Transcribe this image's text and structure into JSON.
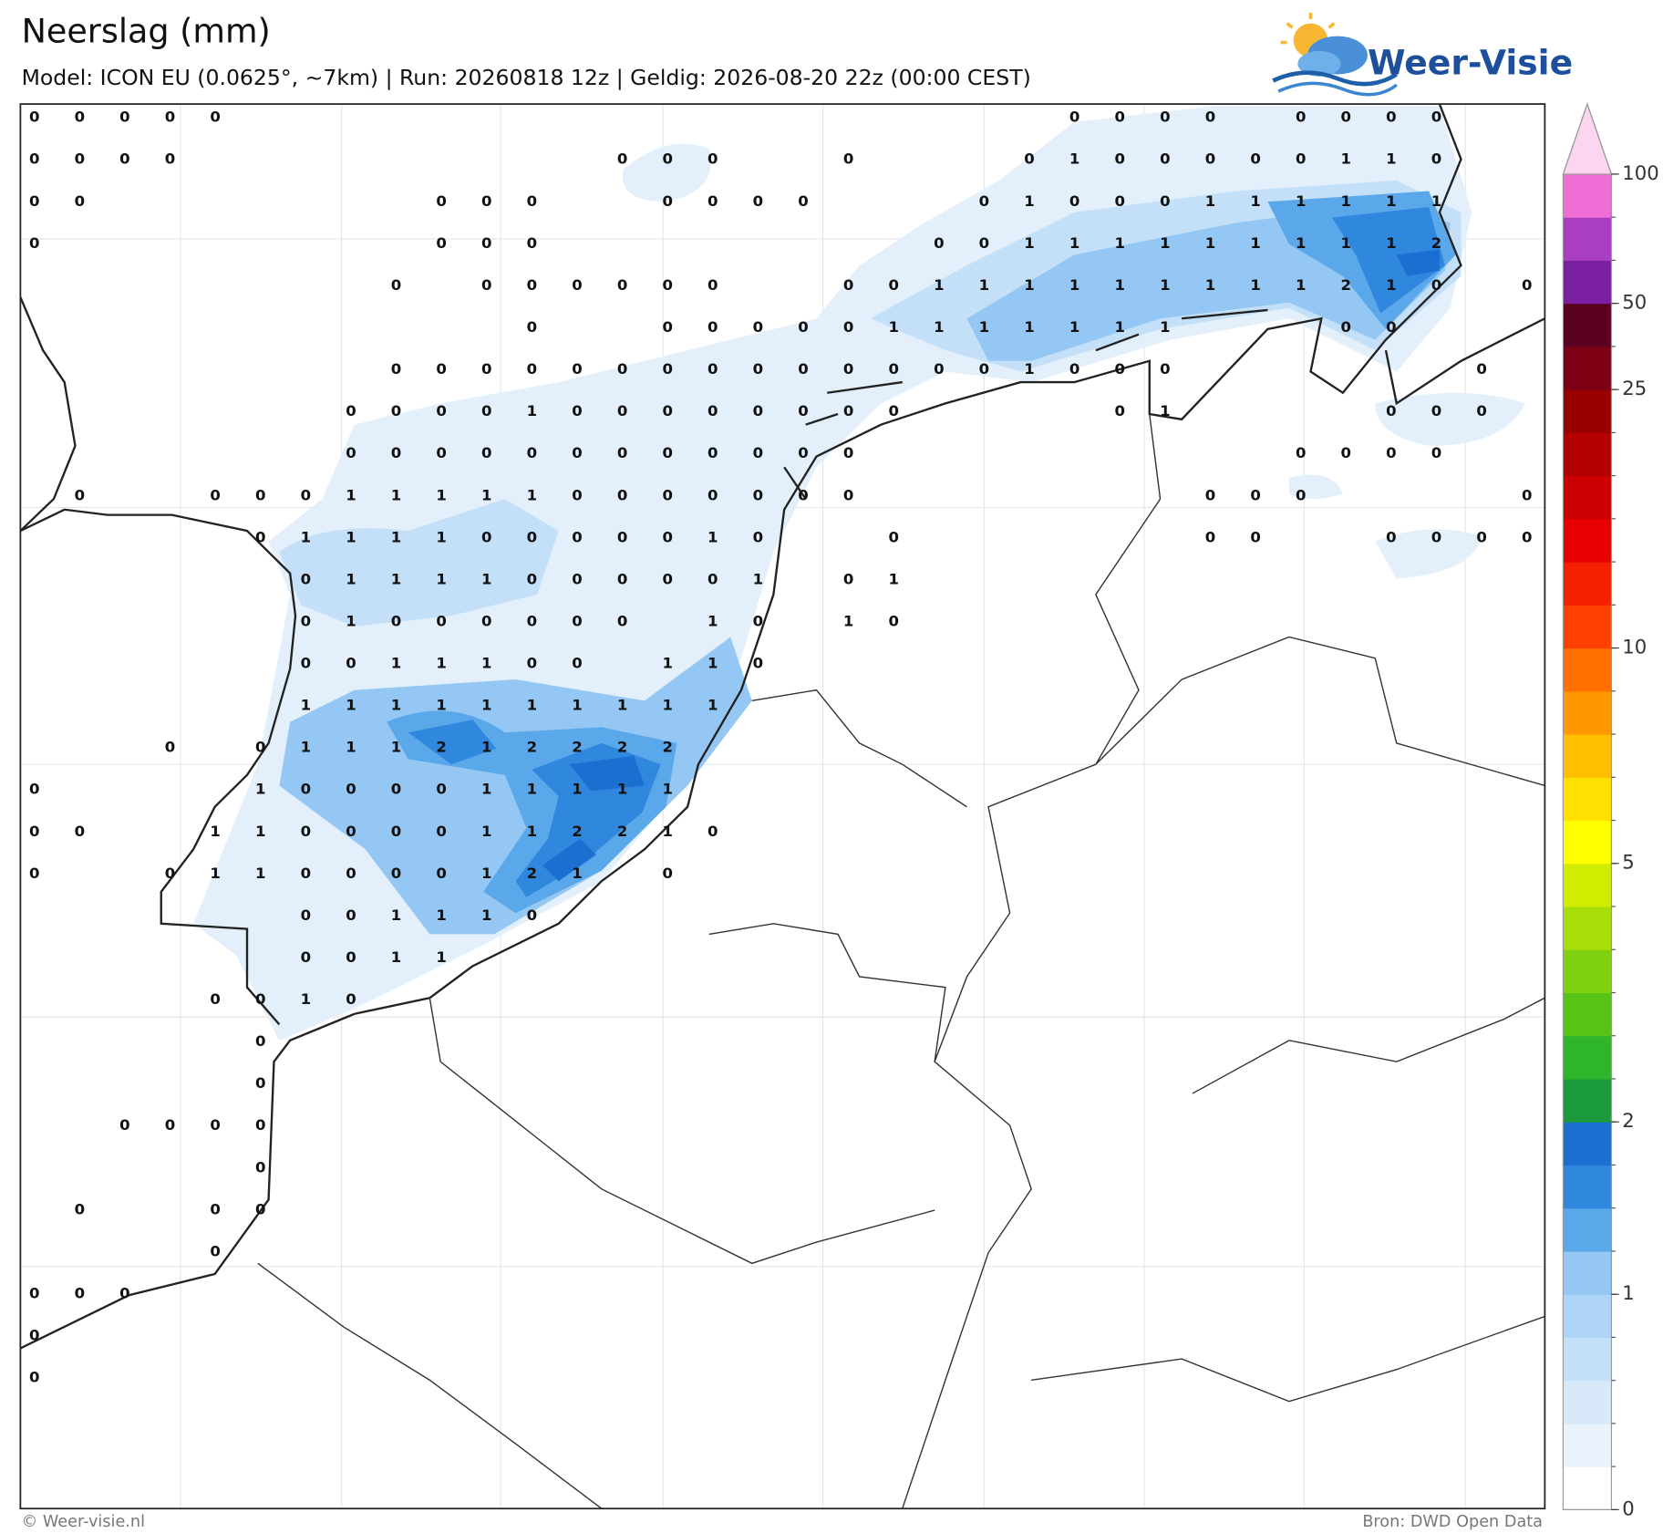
{
  "header": {
    "title": "Neerslag (mm)",
    "subtitle": "Model: ICON EU (0.0625°, ~7km)  |  Run: 20260818 12z  |  Geldig: 2026-08-20 22z (00:00 CEST)",
    "logo": "Weer-Visie"
  },
  "footer": {
    "left": "© Weer-visie.nl",
    "right": "Bron: DWD Open Data"
  },
  "colorbar": {
    "levels": [
      0,
      0.1,
      0.25,
      0.5,
      0.75,
      1,
      1.25,
      1.5,
      1.75,
      2,
      2.5,
      3,
      3.5,
      4,
      4.5,
      5,
      6,
      7,
      8,
      9,
      10,
      12,
      14,
      16,
      18,
      20,
      25,
      35,
      50,
      70,
      85,
      100
    ],
    "colors": [
      "#ffffff",
      "#eaf3fc",
      "#d8eafa",
      "#c4e0f8",
      "#add4f6",
      "#94c7f3",
      "#5aa7ea",
      "#2f88dd",
      "#1a6fd0",
      "#1a9a3a",
      "#2fb52a",
      "#55c417",
      "#7fd10f",
      "#a8de08",
      "#d0ec00",
      "#ffff00",
      "#ffe000",
      "#ffbf00",
      "#ff9800",
      "#ff7000",
      "#ff4000",
      "#f52000",
      "#e60000",
      "#cc0000",
      "#b30000",
      "#990000",
      "#7d0015",
      "#5a0020",
      "#7b1fa2",
      "#a93ec2",
      "#ee6ed6"
    ],
    "extend_color": "#fcd6f0",
    "ticks": [
      0,
      1,
      2,
      5,
      10,
      25,
      50,
      100
    ]
  },
  "grid": {
    "rows": [
      [
        0,
        0,
        0,
        0,
        0,
        null,
        null,
        null,
        null,
        null,
        null,
        null,
        null,
        null,
        null,
        null,
        null,
        null,
        null,
        null,
        null,
        null,
        null,
        0,
        0,
        0,
        0,
        null,
        0,
        0,
        0,
        0,
        null,
        null
      ],
      [
        0,
        0,
        0,
        0,
        null,
        null,
        null,
        null,
        null,
        null,
        null,
        null,
        null,
        0,
        0,
        0,
        null,
        null,
        0,
        null,
        null,
        null,
        0,
        1,
        0,
        0,
        0,
        0,
        0,
        1,
        1,
        0,
        null,
        null
      ],
      [
        0,
        0,
        null,
        null,
        null,
        null,
        null,
        null,
        null,
        0,
        0,
        0,
        null,
        null,
        0,
        0,
        0,
        0,
        null,
        null,
        null,
        0,
        1,
        0,
        0,
        0,
        1,
        1,
        1,
        1,
        1,
        1,
        null,
        null
      ],
      [
        0,
        null,
        null,
        null,
        null,
        null,
        null,
        null,
        null,
        0,
        0,
        0,
        null,
        null,
        null,
        null,
        null,
        null,
        null,
        null,
        0,
        0,
        1,
        1,
        1,
        1,
        1,
        1,
        1,
        1,
        1,
        2,
        null,
        null
      ],
      [
        null,
        null,
        null,
        null,
        null,
        null,
        null,
        null,
        0,
        null,
        0,
        0,
        0,
        0,
        0,
        0,
        null,
        null,
        0,
        0,
        1,
        1,
        1,
        1,
        1,
        1,
        1,
        1,
        1,
        2,
        1,
        0,
        null,
        0
      ],
      [
        null,
        null,
        null,
        null,
        null,
        null,
        null,
        null,
        null,
        null,
        null,
        0,
        null,
        null,
        0,
        0,
        0,
        0,
        0,
        1,
        1,
        1,
        1,
        1,
        1,
        1,
        null,
        null,
        null,
        0,
        0,
        null,
        null,
        null
      ],
      [
        null,
        null,
        null,
        null,
        null,
        null,
        null,
        null,
        0,
        0,
        0,
        0,
        0,
        0,
        0,
        0,
        0,
        0,
        0,
        0,
        0,
        0,
        1,
        0,
        0,
        0,
        null,
        null,
        null,
        null,
        null,
        null,
        0,
        null
      ],
      [
        null,
        null,
        null,
        null,
        null,
        null,
        null,
        0,
        0,
        0,
        0,
        1,
        0,
        0,
        0,
        0,
        0,
        0,
        0,
        0,
        null,
        null,
        null,
        null,
        0,
        1,
        null,
        null,
        null,
        null,
        0,
        0,
        0,
        null
      ],
      [
        null,
        null,
        null,
        null,
        null,
        null,
        null,
        0,
        0,
        0,
        0,
        0,
        0,
        0,
        0,
        0,
        0,
        0,
        0,
        null,
        null,
        null,
        null,
        null,
        null,
        null,
        null,
        null,
        0,
        0,
        0,
        0,
        null,
        null
      ],
      [
        null,
        0,
        null,
        null,
        0,
        0,
        0,
        1,
        1,
        1,
        1,
        1,
        0,
        0,
        0,
        0,
        0,
        0,
        0,
        null,
        null,
        null,
        null,
        null,
        null,
        null,
        0,
        0,
        0,
        null,
        null,
        null,
        null,
        0
      ],
      [
        null,
        null,
        null,
        null,
        null,
        0,
        1,
        1,
        1,
        1,
        0,
        0,
        0,
        0,
        0,
        1,
        0,
        null,
        null,
        0,
        null,
        null,
        null,
        null,
        null,
        null,
        0,
        0,
        null,
        null,
        0,
        0,
        0,
        0
      ],
      [
        null,
        null,
        null,
        null,
        null,
        null,
        0,
        1,
        1,
        1,
        1,
        0,
        0,
        0,
        0,
        0,
        1,
        null,
        0,
        1,
        null,
        null,
        null,
        null,
        null,
        null,
        null,
        null,
        null,
        null,
        null,
        null,
        null,
        null
      ],
      [
        null,
        null,
        null,
        null,
        null,
        null,
        0,
        1,
        0,
        0,
        0,
        0,
        0,
        0,
        null,
        1,
        0,
        null,
        1,
        0,
        null,
        null,
        null,
        null,
        null,
        null,
        null,
        null,
        null,
        null,
        null,
        null,
        null,
        null
      ],
      [
        null,
        null,
        null,
        null,
        null,
        null,
        0,
        0,
        1,
        1,
        1,
        0,
        0,
        null,
        1,
        1,
        0,
        null,
        null,
        null,
        null,
        null,
        null,
        null,
        null,
        null,
        null,
        null,
        null,
        null,
        null,
        null,
        null,
        null
      ],
      [
        null,
        null,
        null,
        null,
        null,
        null,
        1,
        1,
        1,
        1,
        1,
        1,
        1,
        1,
        1,
        1,
        null,
        null,
        null,
        null,
        null,
        null,
        null,
        null,
        null,
        null,
        null,
        null,
        null,
        null,
        null,
        null,
        null,
        null
      ],
      [
        null,
        null,
        null,
        0,
        null,
        0,
        1,
        1,
        1,
        2,
        1,
        2,
        2,
        2,
        2,
        null,
        null,
        null,
        null,
        null,
        null,
        null,
        null,
        null,
        null,
        null,
        null,
        null,
        null,
        null,
        null,
        null,
        null,
        null
      ],
      [
        0,
        null,
        null,
        null,
        null,
        1,
        0,
        0,
        0,
        0,
        1,
        1,
        1,
        1,
        1,
        null,
        null,
        null,
        null,
        null,
        null,
        null,
        null,
        null,
        null,
        null,
        null,
        null,
        null,
        null,
        null,
        null,
        null,
        null
      ],
      [
        0,
        0,
        null,
        null,
        1,
        1,
        0,
        0,
        0,
        0,
        1,
        1,
        2,
        2,
        1,
        0,
        null,
        null,
        null,
        null,
        null,
        null,
        null,
        null,
        null,
        null,
        null,
        null,
        null,
        null,
        null,
        null,
        null,
        null
      ],
      [
        0,
        null,
        null,
        0,
        1,
        1,
        0,
        0,
        0,
        0,
        1,
        2,
        1,
        null,
        0,
        null,
        null,
        null,
        null,
        null,
        null,
        null,
        null,
        null,
        null,
        null,
        null,
        null,
        null,
        null,
        null,
        null,
        null,
        null
      ],
      [
        null,
        null,
        null,
        null,
        null,
        null,
        0,
        0,
        1,
        1,
        1,
        0,
        null,
        null,
        null,
        null,
        null,
        null,
        null,
        null,
        null,
        null,
        null,
        null,
        null,
        null,
        null,
        null,
        null,
        null,
        null,
        null,
        null,
        null
      ],
      [
        null,
        null,
        null,
        null,
        null,
        null,
        0,
        0,
        1,
        1,
        null,
        null,
        null,
        null,
        null,
        null,
        null,
        null,
        null,
        null,
        null,
        null,
        null,
        null,
        null,
        null,
        null,
        null,
        null,
        null,
        null,
        null,
        null,
        null
      ],
      [
        null,
        null,
        null,
        null,
        0,
        0,
        1,
        0,
        null,
        null,
        null,
        null,
        null,
        null,
        null,
        null,
        null,
        null,
        null,
        null,
        null,
        null,
        null,
        null,
        null,
        null,
        null,
        null,
        null,
        null,
        null,
        null,
        null,
        null
      ],
      [
        null,
        null,
        null,
        null,
        null,
        0,
        null,
        null,
        null,
        null,
        null,
        null,
        null,
        null,
        null,
        null,
        null,
        null,
        null,
        null,
        null,
        null,
        null,
        null,
        null,
        null,
        null,
        null,
        null,
        null,
        null,
        null,
        null,
        null
      ],
      [
        null,
        null,
        null,
        null,
        null,
        0,
        null,
        null,
        null,
        null,
        null,
        null,
        null,
        null,
        null,
        null,
        null,
        null,
        null,
        null,
        null,
        null,
        null,
        null,
        null,
        null,
        null,
        null,
        null,
        null,
        null,
        null,
        null,
        null
      ],
      [
        null,
        null,
        0,
        0,
        0,
        0,
        null,
        null,
        null,
        null,
        null,
        null,
        null,
        null,
        null,
        null,
        null,
        null,
        null,
        null,
        null,
        null,
        null,
        null,
        null,
        null,
        null,
        null,
        null,
        null,
        null,
        null,
        null,
        null
      ],
      [
        null,
        null,
        null,
        null,
        null,
        0,
        null,
        null,
        null,
        null,
        null,
        null,
        null,
        null,
        null,
        null,
        null,
        null,
        null,
        null,
        null,
        null,
        null,
        null,
        null,
        null,
        null,
        null,
        null,
        null,
        null,
        null,
        null,
        null
      ],
      [
        null,
        0,
        null,
        null,
        0,
        0,
        null,
        null,
        null,
        null,
        null,
        null,
        null,
        null,
        null,
        null,
        null,
        null,
        null,
        null,
        null,
        null,
        null,
        null,
        null,
        null,
        null,
        null,
        null,
        null,
        null,
        null,
        null,
        null
      ],
      [
        null,
        null,
        null,
        null,
        0,
        null,
        null,
        null,
        null,
        null,
        null,
        null,
        null,
        null,
        null,
        null,
        null,
        null,
        null,
        null,
        null,
        null,
        null,
        null,
        null,
        null,
        null,
        null,
        null,
        null,
        null,
        null,
        null,
        null
      ],
      [
        0,
        0,
        0,
        null,
        null,
        null,
        null,
        null,
        null,
        null,
        null,
        null,
        null,
        null,
        null,
        null,
        null,
        null,
        null,
        null,
        null,
        null,
        null,
        null,
        null,
        null,
        null,
        null,
        null,
        null,
        null,
        null,
        null,
        null
      ],
      [
        0,
        null,
        null,
        null,
        null,
        null,
        null,
        null,
        null,
        null,
        null,
        null,
        null,
        null,
        null,
        null,
        null,
        null,
        null,
        null,
        null,
        null,
        null,
        null,
        null,
        null,
        null,
        null,
        null,
        null,
        null,
        null,
        null,
        null
      ],
      [
        0,
        null,
        null,
        null,
        null,
        null,
        null,
        null,
        null,
        null,
        null,
        null,
        null,
        null,
        null,
        null,
        null,
        null,
        null,
        null,
        null,
        null,
        null,
        null,
        null,
        null,
        null,
        null,
        null,
        null,
        null,
        null,
        null,
        null
      ]
    ]
  }
}
